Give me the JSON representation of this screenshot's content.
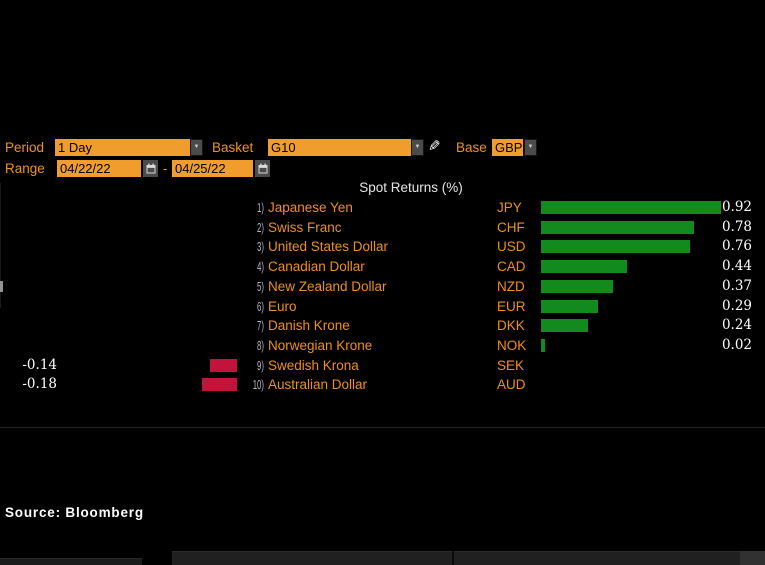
{
  "controls": {
    "period_label": "Period",
    "period_value": "1 Day",
    "basket_label": "Basket",
    "basket_value": "G10",
    "base_label": "Base",
    "base_value": "GBP",
    "range_label": "Range",
    "range_start": "04/22/22",
    "range_separator": "-",
    "range_end": "04/25/22"
  },
  "icons": {
    "dropdown_arrow": "▼",
    "pencil": "✎"
  },
  "chart_data": {
    "type": "bar",
    "orientation": "horizontal",
    "title": "Spot Returns (%)",
    "ranks": [
      "1)",
      "2)",
      "3)",
      "4)",
      "5)",
      "6)",
      "7)",
      "8)",
      "9)",
      "10)"
    ],
    "categories": [
      "Japanese Yen",
      "Swiss Franc",
      "United States Dollar",
      "Canadian Dollar",
      "New Zealand Dollar",
      "Euro",
      "Danish Krone",
      "Norwegian Krone",
      "Swedish Krona",
      "Australian Dollar"
    ],
    "tickers": [
      "JPY",
      "CHF",
      "USD",
      "CAD",
      "NZD",
      "EUR",
      "DKK",
      "NOK",
      "SEK",
      "AUD"
    ],
    "values": [
      0.92,
      0.78,
      0.76,
      0.44,
      0.37,
      0.29,
      0.24,
      0.02,
      -0.14,
      -0.18
    ],
    "value_labels": [
      "0.92",
      "0.78",
      "0.76",
      "0.44",
      "0.37",
      "0.29",
      "0.24",
      "0.02",
      "-0.14",
      "-0.18"
    ],
    "positive_color": "#128a1e",
    "negative_color": "#c2143a",
    "legend": "none",
    "grid": "off"
  },
  "footer": {
    "source": "Source: Bloomberg"
  }
}
